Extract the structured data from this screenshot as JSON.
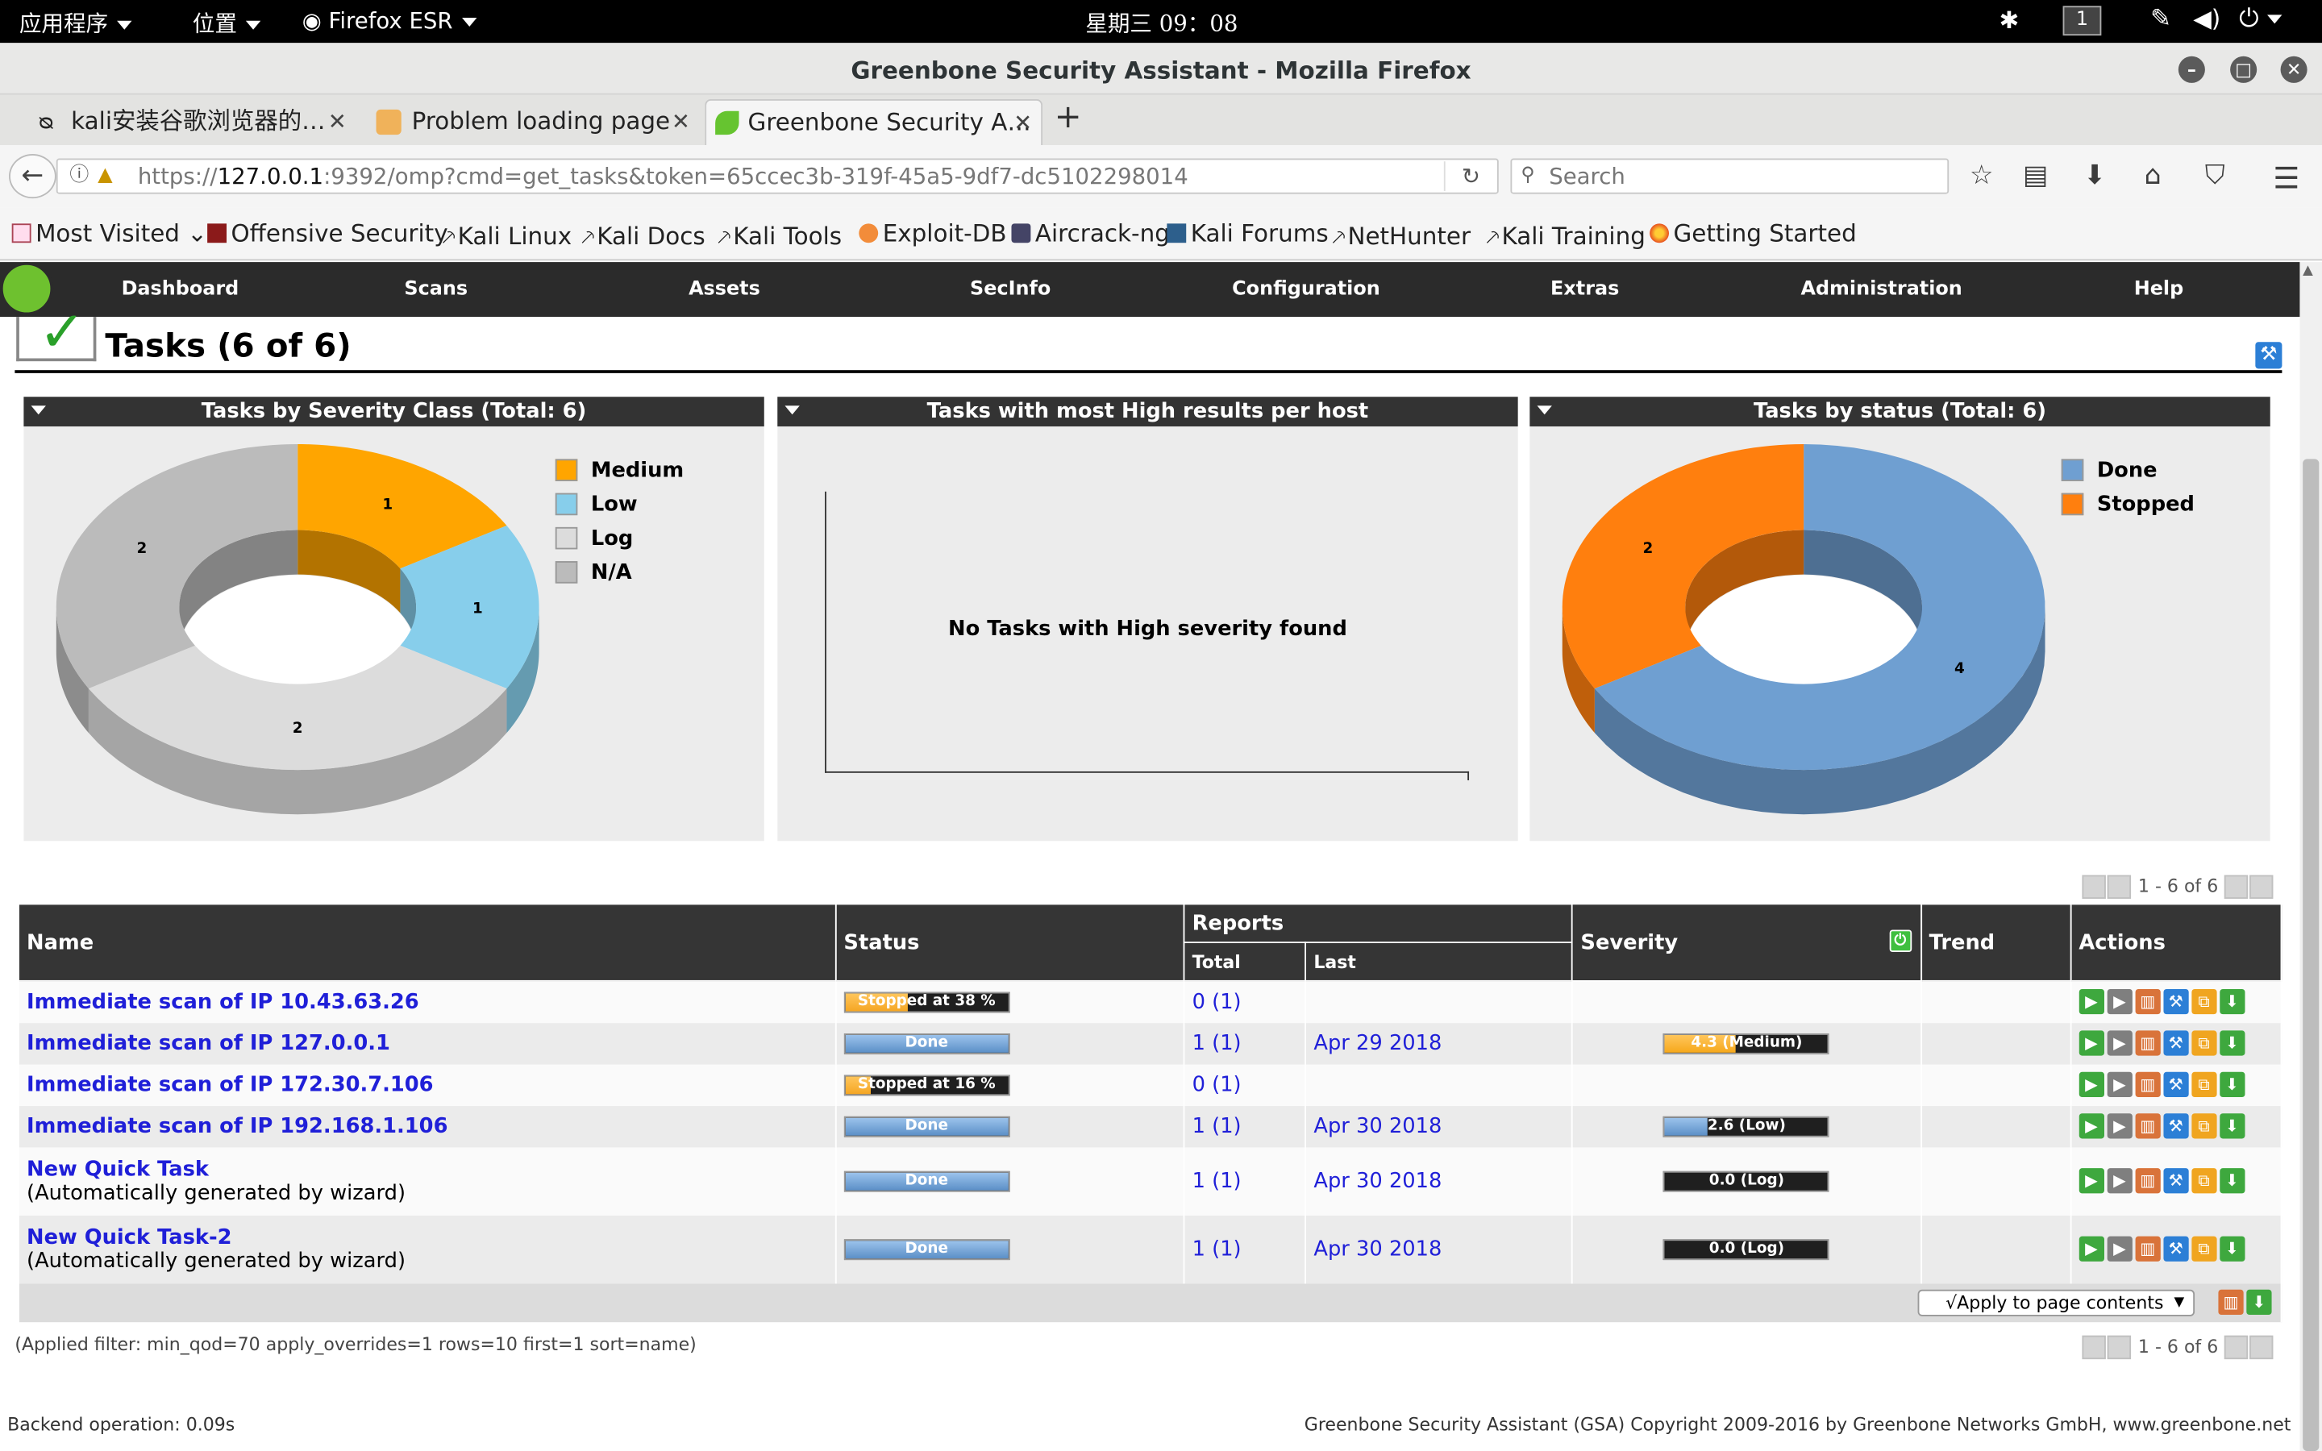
{
  "system": {
    "apps_menu": "应用程序",
    "places_menu": "位置",
    "app_name": "Firefox ESR",
    "clock": "星期三 09：08",
    "workspace": "1"
  },
  "window": {
    "title": "Greenbone Security Assistant - Mozilla Firefox"
  },
  "tabs": [
    {
      "label": "kali安装谷歌浏览器的…"
    },
    {
      "label": "Problem loading page"
    },
    {
      "label": "Greenbone Security A…"
    }
  ],
  "nav": {
    "url_scheme": "https://",
    "url_host": "127.0.0.1",
    "url_rest": ":9392/omp?cmd=get_tasks&token=65ccec3b-319f-45a5-9df7-dc5102298014",
    "search_placeholder": "Search"
  },
  "bookmarks": [
    {
      "label": "Most Visited"
    },
    {
      "label": "Offensive Security"
    },
    {
      "label": "Kali Linux"
    },
    {
      "label": "Kali Docs"
    },
    {
      "label": "Kali Tools"
    },
    {
      "label": "Exploit-DB"
    },
    {
      "label": "Aircrack-ng"
    },
    {
      "label": "Kali Forums"
    },
    {
      "label": "NetHunter"
    },
    {
      "label": "Kali Training"
    },
    {
      "label": "Getting Started"
    }
  ],
  "gsa_menu": [
    "Dashboard",
    "Scans",
    "Assets",
    "SecInfo",
    "Configuration",
    "Extras",
    "Administration",
    "Help"
  ],
  "page": {
    "title": "Tasks (6 of 6)"
  },
  "panels": {
    "severity": {
      "title": "Tasks by Severity Class (Total: 6)",
      "legend": [
        {
          "label": "Medium",
          "color": "#ffa500"
        },
        {
          "label": "Low",
          "color": "#87ceeb"
        },
        {
          "label": "Log",
          "color": "#dcdcdc"
        },
        {
          "label": "N/A",
          "color": "#bbbbbb"
        }
      ],
      "chart_data": {
        "type": "pie",
        "categories": [
          "Medium",
          "Low",
          "Log",
          "N/A"
        ],
        "values": [
          1,
          1,
          2,
          2
        ],
        "legend": "top-right"
      }
    },
    "high_results": {
      "title": "Tasks with most High results per host",
      "empty_text": "No Tasks with High severity found"
    },
    "status": {
      "title": "Tasks by status (Total: 6)",
      "legend": [
        {
          "label": "Done",
          "color": "#6f9fd1"
        },
        {
          "label": "Stopped",
          "color": "#ff7f0e"
        }
      ],
      "chart_data": {
        "type": "pie",
        "categories": [
          "Done",
          "Stopped"
        ],
        "values": [
          4,
          2
        ],
        "legend": "top-right"
      }
    }
  },
  "pagination": {
    "text": "1 - 6 of 6"
  },
  "table": {
    "headers": {
      "name": "Name",
      "status": "Status",
      "reports": "Reports",
      "total": "Total",
      "last": "Last",
      "severity": "Severity",
      "trend": "Trend",
      "actions": "Actions"
    },
    "rows": [
      {
        "name": "Immediate scan of IP 10.43.63.26",
        "comment": "",
        "status": "Stopped at 38 %",
        "progress": 38,
        "status_kind": "stopped",
        "total": "0",
        "total_paren": "(1)",
        "last": "",
        "severity": "",
        "severity_value": 0,
        "severity_kind": ""
      },
      {
        "name": "Immediate scan of IP 127.0.0.1",
        "comment": "",
        "status": "Done",
        "progress": 100,
        "status_kind": "done",
        "total": "1",
        "total_paren": "(1)",
        "last": "Apr 29 2018",
        "severity": "4.3 (Medium)",
        "severity_value": 4.3,
        "severity_kind": "medium"
      },
      {
        "name": "Immediate scan of IP 172.30.7.106",
        "comment": "",
        "status": "Stopped at 16 %",
        "progress": 16,
        "status_kind": "stopped",
        "total": "0",
        "total_paren": "(1)",
        "last": "",
        "severity": "",
        "severity_value": 0,
        "severity_kind": ""
      },
      {
        "name": "Immediate scan of IP 192.168.1.106",
        "comment": "",
        "status": "Done",
        "progress": 100,
        "status_kind": "done",
        "total": "1",
        "total_paren": "(1)",
        "last": "Apr 30 2018",
        "severity": "2.6 (Low)",
        "severity_value": 2.6,
        "severity_kind": "low"
      },
      {
        "name": "New Quick Task",
        "comment": "(Automatically generated by wizard)",
        "status": "Done",
        "progress": 100,
        "status_kind": "done",
        "total": "1",
        "total_paren": "(1)",
        "last": "Apr 30 2018",
        "severity": "0.0 (Log)",
        "severity_value": 0,
        "severity_kind": "log"
      },
      {
        "name": "New Quick Task-2",
        "comment": "(Automatically generated by wizard)",
        "status": "Done",
        "progress": 100,
        "status_kind": "done",
        "total": "1",
        "total_paren": "(1)",
        "last": "Apr 30 2018",
        "severity": "0.0 (Log)",
        "severity_value": 0,
        "severity_kind": "log"
      }
    ],
    "apply_label": "√Apply to page contents"
  },
  "filter_text": "(Applied filter: min_qod=70 apply_overrides=1 rows=10 first=1 sort=name)",
  "footer": {
    "backend": "Backend operation: 0.09s",
    "copyright": "Greenbone Security Assistant (GSA) Copyright 2009-2016 by Greenbone Networks GmbH, www.greenbone.net"
  },
  "colors": {
    "stopped": "#f5a623",
    "done": "#6f9fd1",
    "medium": "#f6a81b",
    "low": "#6f9fd1"
  }
}
